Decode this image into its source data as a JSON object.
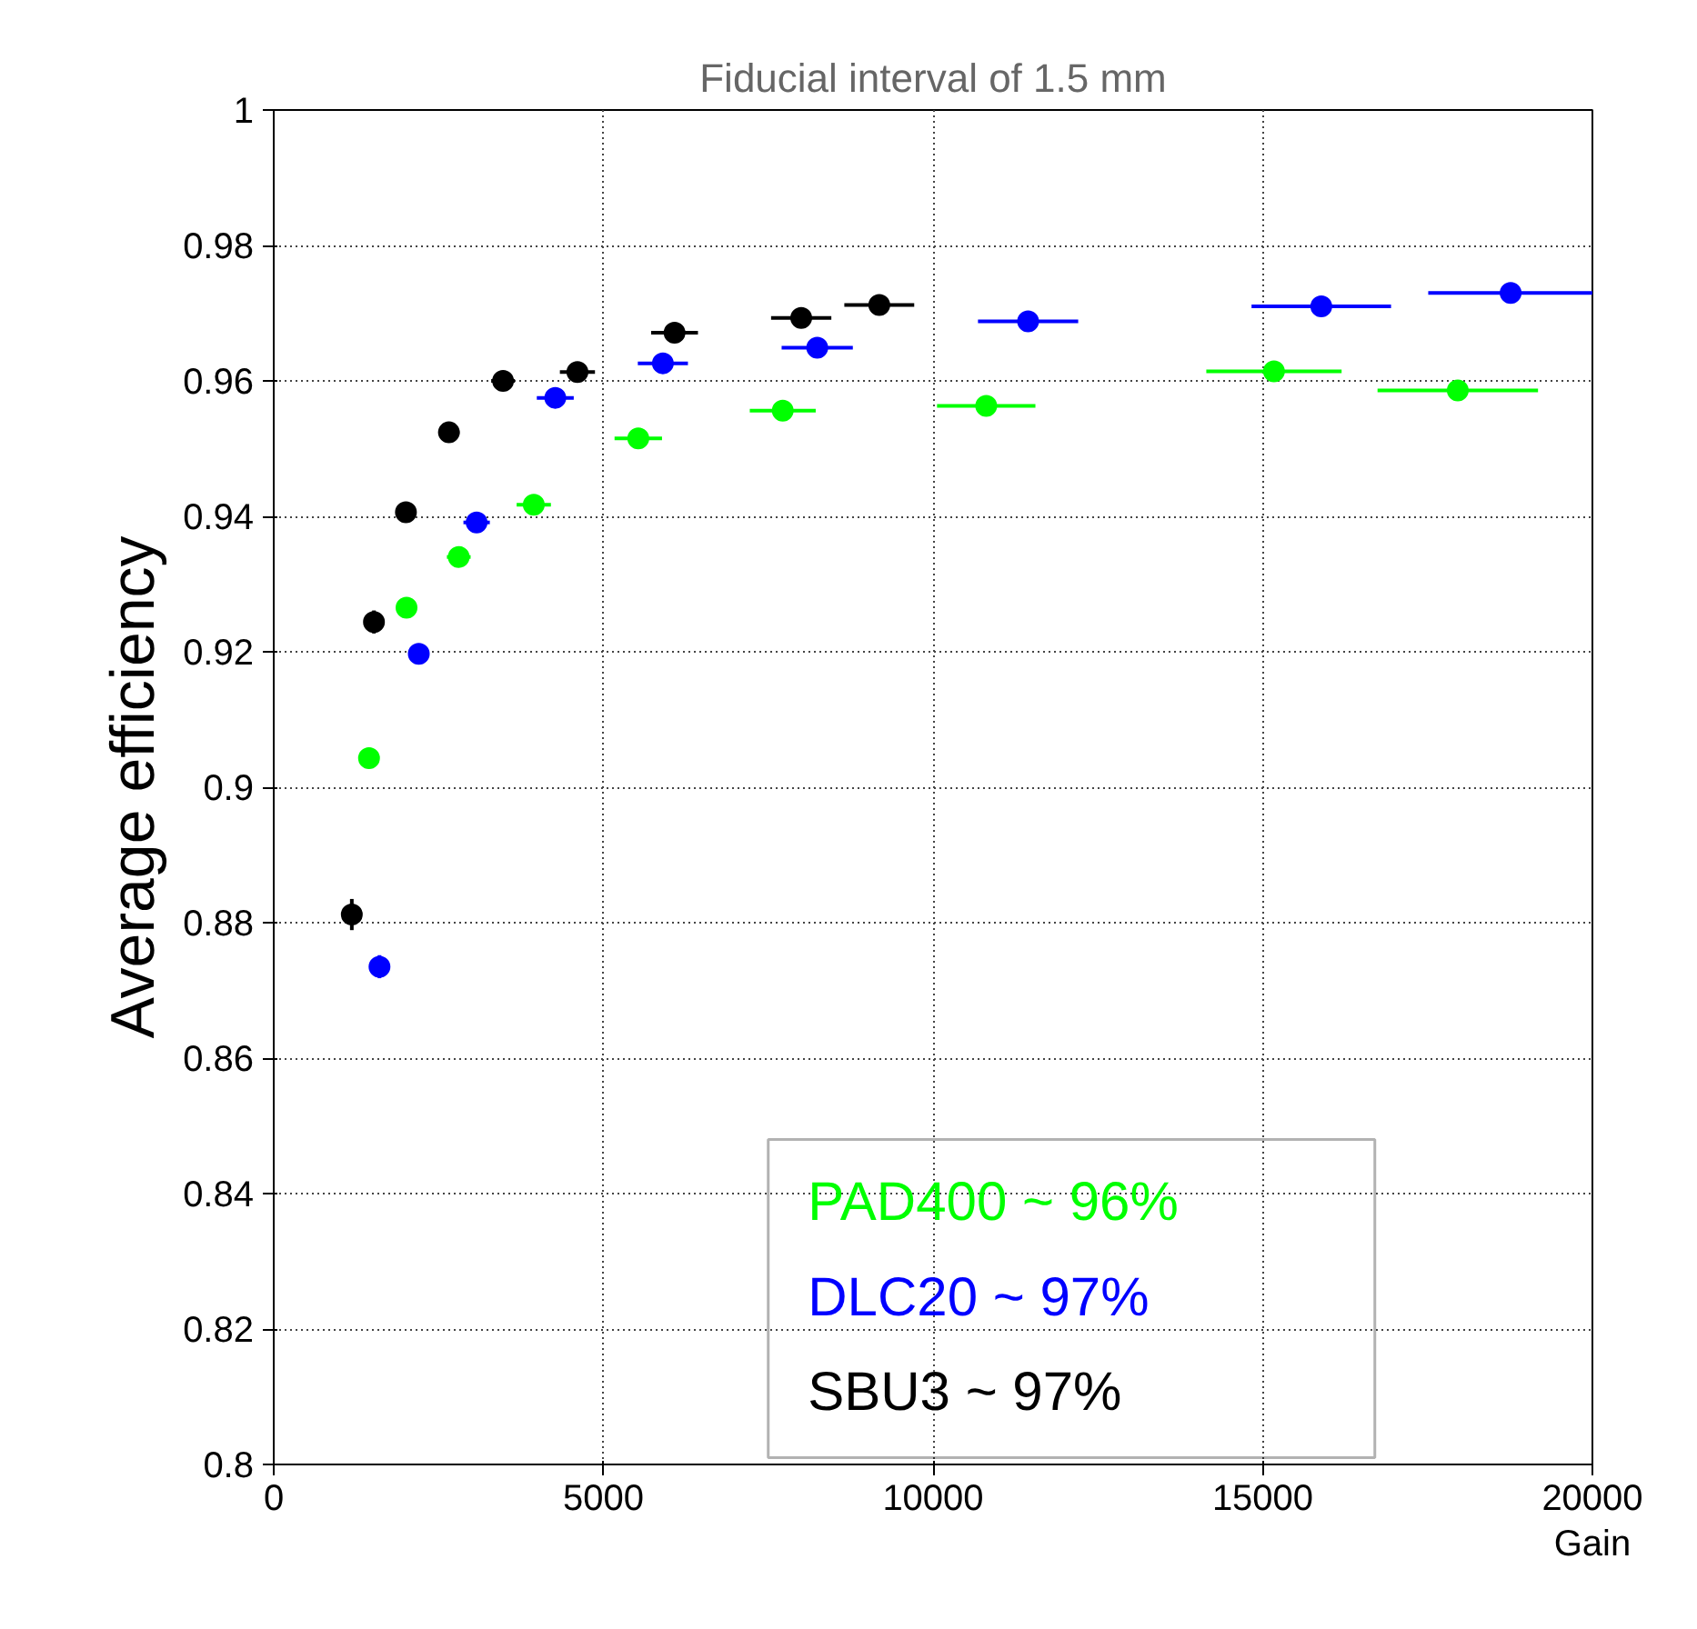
{
  "chart_data": {
    "type": "scatter",
    "title": "Fiducial interval of 1.5 mm",
    "xlabel": "Gain",
    "ylabel": "Average efficiency",
    "xlim": [
      0,
      20000
    ],
    "ylim": [
      0.8,
      1.0
    ],
    "xticks": [
      0,
      5000,
      10000,
      15000,
      20000
    ],
    "yticks": [
      {
        "value": 0.8,
        "label": "0.8"
      },
      0.82,
      0.84,
      0.86,
      0.88,
      {
        "value": 0.9,
        "label": "0.9"
      },
      0.92,
      0.94,
      0.96,
      0.98,
      {
        "value": 1.0,
        "label": "1"
      }
    ],
    "grid": true,
    "legend": "bottom right",
    "marker": "circle",
    "series": [
      {
        "name": "PAD400 ~ 96%",
        "color": "#00ff00",
        "x": [
          1445,
          2014,
          2806,
          3944,
          5529,
          7720,
          10806,
          15170,
          17958
        ],
        "values": [
          0.9043,
          0.9265,
          0.934,
          0.9417,
          0.9515,
          0.9556,
          0.9563,
          0.9614,
          0.9586
        ],
        "xerrors": [
          95,
          130,
          180,
          260,
          360,
          500,
          746,
          1026,
          1217
        ],
        "errors": [
          0.0015,
          0.0015,
          0.0013,
          0.0012,
          0.0012,
          0.0012,
          0.0012,
          0.0012,
          0.0008
        ]
      },
      {
        "name": "DLC20 ~ 97%",
        "color": "#0000ff",
        "x": [
          1604,
          2200,
          3077,
          4270,
          5902,
          8243,
          11441,
          15888,
          18760
        ],
        "values": [
          0.8735,
          0.9197,
          0.9391,
          0.9575,
          0.9626,
          0.9649,
          0.9688,
          0.971,
          0.973
        ],
        "xerrors": [
          100,
          140,
          200,
          280,
          380,
          540,
          760,
          1058,
          1250
        ],
        "errors": [
          0.0017,
          0.0015,
          0.0013,
          0.0012,
          0.0012,
          0.0012,
          0.0006,
          0.0006,
          0.0005
        ]
      },
      {
        "name": "SBU3 ~ 97%",
        "color": "#000000",
        "x": [
          1184,
          1520,
          2005,
          2657,
          3478,
          4606,
          6079,
          8000,
          9184
        ],
        "values": [
          0.8812,
          0.9244,
          0.9406,
          0.9524,
          0.96,
          0.9613,
          0.9671,
          0.9693,
          0.9712
        ],
        "xerrors": [
          70,
          90,
          120,
          160,
          180,
          266,
          355,
          457,
          530
        ],
        "errors": [
          0.0023,
          0.0017,
          0.0013,
          0.0012,
          0.0012,
          0.0012,
          0.0006,
          0.0006,
          0.0005
        ]
      }
    ]
  }
}
